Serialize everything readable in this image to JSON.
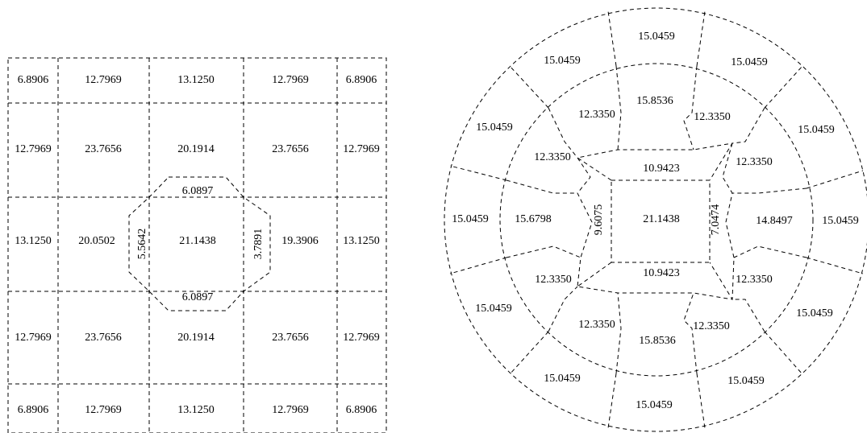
{
  "square_grid": {
    "rows": [
      [
        "6.8906",
        "12.7969",
        "13.1250",
        "12.7969",
        "6.8906"
      ],
      [
        "12.7969",
        "23.7656",
        "20.1914",
        "23.7656",
        "12.7969"
      ],
      [
        "13.1250",
        "20.0502",
        "21.1438",
        "19.3906",
        "13.1250"
      ],
      [
        "12.7969",
        "23.7656",
        "20.1914",
        "23.7656",
        "12.7969"
      ],
      [
        "6.8906",
        "12.7969",
        "13.1250",
        "12.7969",
        "6.8906"
      ]
    ],
    "octagon": {
      "top": "6.0897",
      "bottom": "6.0897",
      "left": "5.5642",
      "right": "3.7891"
    }
  },
  "circle_grid": {
    "outer_ring": [
      "15.0459",
      "15.0459",
      "15.0459",
      "15.0459",
      "15.0459",
      "15.0459",
      "15.0459",
      "15.0459",
      "15.0459",
      "15.0459",
      "15.0459",
      "15.0459"
    ],
    "middle_ring": [
      "15.8536",
      "12.3350",
      "12.3350",
      "14.8497",
      "12.3350",
      "12.3350",
      "15.8536",
      "12.3350",
      "12.3350",
      "15.6798",
      "12.3350",
      "12.3350"
    ],
    "inner": {
      "top": "10.9423",
      "bottom": "10.9423",
      "left": "9.6075",
      "right": "7.0474",
      "center": "21.1438"
    }
  }
}
